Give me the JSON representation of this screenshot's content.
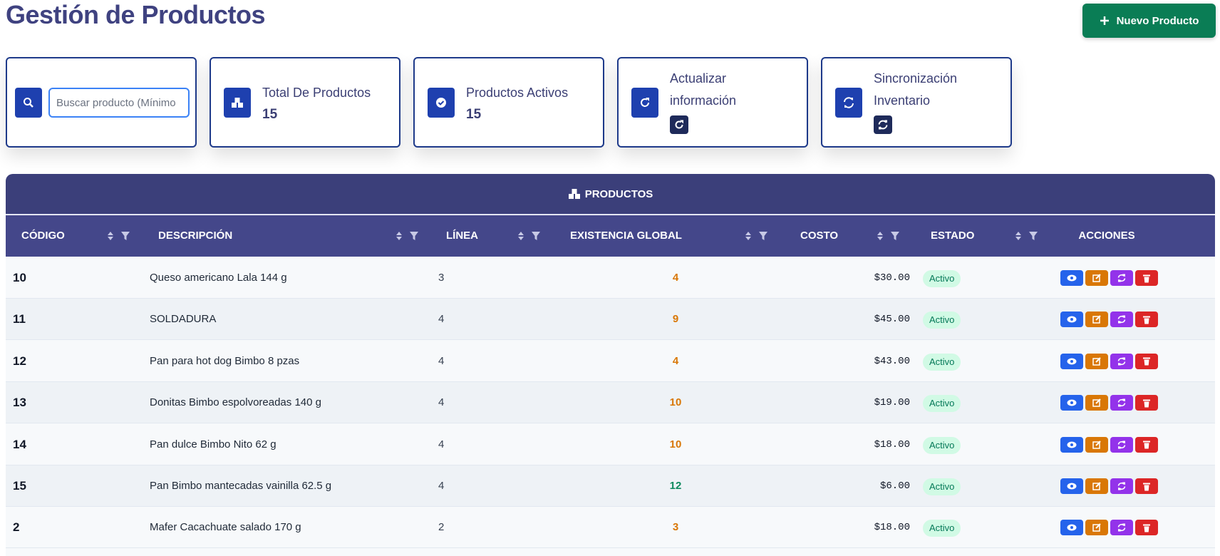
{
  "header": {
    "title": "Gestión de Productos",
    "new_button": "Nuevo Producto"
  },
  "search": {
    "placeholder": "Buscar producto (Mínimo"
  },
  "cards": [
    {
      "label": "Total De Productos",
      "value": 15
    },
    {
      "label": "Productos Activos",
      "value": 15
    },
    {
      "label": "Actualizar información"
    },
    {
      "label": "Sincronización Inventario"
    }
  ],
  "table": {
    "title": "PRODUCTOS",
    "columns": [
      "CÓDIGO",
      "DESCRIPCIÓN",
      "LÍNEA",
      "EXISTENCIA GLOBAL",
      "COSTO",
      "ESTADO",
      "ACCIONES"
    ],
    "rows": [
      [
        "10",
        "Queso americano Lala 144 g",
        3,
        4,
        "$30.00",
        "Activo"
      ],
      [
        "11",
        "SOLDADURA",
        4,
        9,
        "$45.00",
        "Activo"
      ],
      [
        "12",
        "Pan para hot dog Bimbo 8 pzas",
        4,
        4,
        "$43.00",
        "Activo"
      ],
      [
        "13",
        "Donitas Bimbo espolvoreadas 140 g",
        4,
        10,
        "$19.00",
        "Activo"
      ],
      [
        "14",
        "Pan dulce Bimbo Nito 62 g",
        4,
        10,
        "$18.00",
        "Activo"
      ],
      [
        "15",
        "Pan Bimbo mantecadas vainilla 62.5 g",
        4,
        12,
        "$6.00",
        "Activo"
      ],
      [
        "2",
        "Mafer Cacachuate salado 170 g",
        2,
        3,
        "$18.00",
        "Activo"
      ]
    ],
    "stock_colors": [
      "#d97706",
      "#d97706",
      "#d97706",
      "#d97706",
      "#d97706",
      "#0f8a5f",
      "#d97706"
    ]
  }
}
